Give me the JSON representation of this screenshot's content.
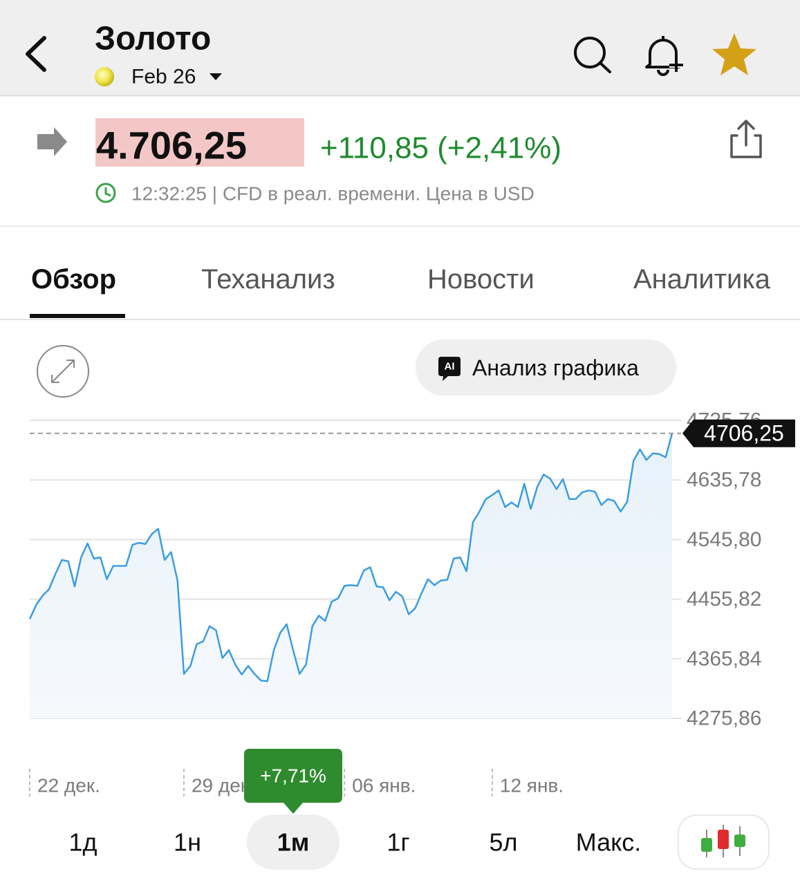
{
  "header": {
    "title": "Золото",
    "contract": "Feb 26"
  },
  "quote": {
    "price": "4.706,25",
    "change": "+110,85 (+2,41%)",
    "time": "12:32:25 | CFD в реал. времени. Цена в USD"
  },
  "tabs": [
    "Обзор",
    "Теханализ",
    "Новости",
    "Аналитика"
  ],
  "ai_button": {
    "badge": "AI",
    "label": "Анализ графика"
  },
  "chart_data": {
    "type": "line",
    "categories": [
      "22 дек.",
      null,
      null,
      null,
      null,
      null,
      null,
      null,
      null,
      null,
      null,
      null,
      null,
      null,
      null,
      null,
      null,
      null,
      null,
      null,
      null,
      null,
      null,
      null,
      "29 дек.",
      null,
      null,
      null,
      null,
      null,
      null,
      null,
      null,
      null,
      null,
      null,
      null,
      null,
      null,
      null,
      null,
      null,
      null,
      null,
      null,
      null,
      null,
      null,
      null,
      "06 янв.",
      null,
      null,
      null,
      null,
      null,
      null,
      null,
      null,
      null,
      null,
      null,
      null,
      null,
      null,
      null,
      null,
      null,
      null,
      null,
      null,
      null,
      null,
      "12 янв.",
      null,
      null,
      null,
      null,
      null,
      null,
      null,
      null,
      null,
      null,
      null,
      null,
      null,
      null,
      null,
      null,
      null,
      null,
      null,
      null,
      null,
      null,
      null,
      null,
      null,
      null,
      null,
      null
    ],
    "values": [
      4426,
      4447,
      4461,
      4471,
      4494,
      4515,
      4513,
      4475,
      4519,
      4540,
      4517,
      4519,
      4486,
      4506,
      4506,
      4506,
      4538,
      4541,
      4539,
      4554,
      4562,
      4515,
      4527,
      4484,
      4343,
      4355,
      4388,
      4392,
      4415,
      4409,
      4367,
      4379,
      4357,
      4342,
      4355,
      4343,
      4333,
      4332,
      4379,
      4405,
      4418,
      4379,
      4343,
      4357,
      4415,
      4431,
      4423,
      4452,
      4457,
      4476,
      4477,
      4476,
      4499,
      4504,
      4475,
      4474,
      4454,
      4467,
      4460,
      4433,
      4442,
      4465,
      4486,
      4477,
      4484,
      4485,
      4517,
      4519,
      4498,
      4572,
      4588,
      4607,
      4613,
      4620,
      4595,
      4602,
      4595,
      4630,
      4592,
      4625,
      4644,
      4638,
      4622,
      4637,
      4607,
      4607,
      4617,
      4620,
      4618,
      4598,
      4607,
      4604,
      4588,
      4603,
      4665,
      4682,
      4666,
      4676,
      4675,
      4670,
      4706.25
    ],
    "color": "#3a9de0",
    "ylim": [
      4275.86,
      4725.76
    ],
    "yticks": [
      {
        "value": 4275.86,
        "label": "4275,86"
      },
      {
        "value": 4365.84,
        "label": "4365,84"
      },
      {
        "value": 4455.82,
        "label": "4455,82"
      },
      {
        "value": 4545.8,
        "label": "4545,80"
      },
      {
        "value": 4635.78,
        "label": "4635,78"
      },
      {
        "value": 4725.76,
        "label": "4725,76"
      }
    ],
    "grid": true,
    "current": {
      "value": 4706.25,
      "label": "4706,25"
    }
  },
  "periods": {
    "tooltip": "+7,71%",
    "labels": [
      "1д",
      "1н",
      "1м",
      "1г",
      "5л",
      "Макс."
    ]
  }
}
